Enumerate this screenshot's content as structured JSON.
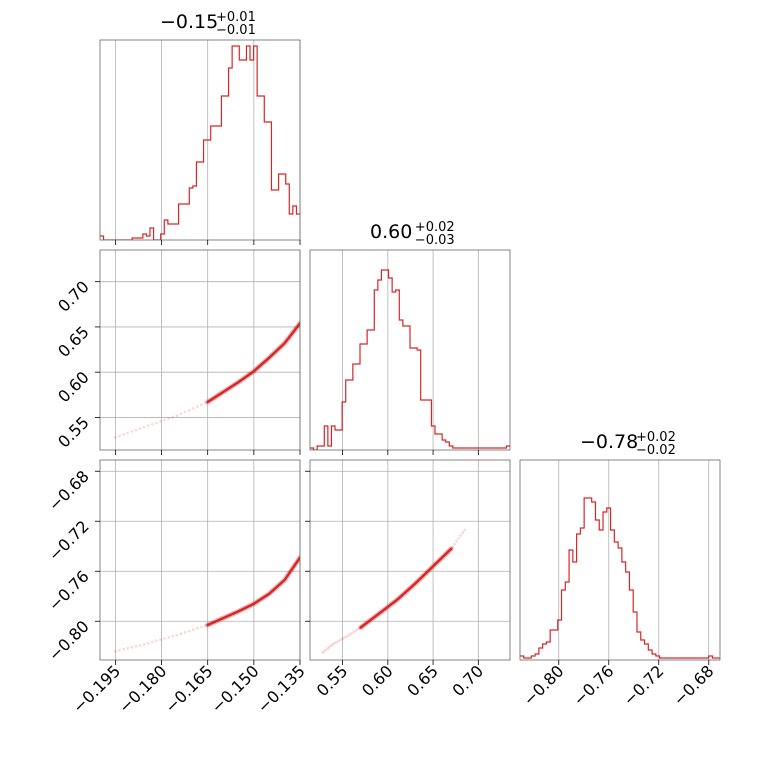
{
  "chart_data": {
    "type": "corner",
    "color": "#d62728",
    "grid": true,
    "parameters": [
      {
        "title": {
          "main": "−0.15",
          "sup": "+0.01",
          "sub": "−0.01"
        },
        "range": [
          -0.2,
          -0.135
        ],
        "ticks": [
          -0.195,
          -0.18,
          -0.165,
          -0.15,
          -0.135
        ],
        "tick_labels": [
          "−0.195",
          "−0.180",
          "−0.165",
          "−0.150",
          "−0.135"
        ]
      },
      {
        "title": {
          "main": "0.60",
          "sup": "+0.02",
          "sub": "−0.03"
        },
        "range": [
          0.514,
          0.735
        ],
        "ticks": [
          0.55,
          0.6,
          0.65,
          0.7
        ],
        "tick_labels": [
          "0.55",
          "0.60",
          "0.65",
          "0.70"
        ]
      },
      {
        "title": {
          "main": "−0.78",
          "sup": "+0.02",
          "sub": "−0.02"
        },
        "range": [
          -0.831,
          -0.671
        ],
        "ticks": [
          -0.8,
          -0.76,
          -0.72,
          -0.68
        ],
        "tick_labels": [
          "−0.80",
          "−0.76",
          "−0.72",
          "−0.68"
        ]
      }
    ],
    "histograms": [
      {
        "param": 0,
        "edges_start": -0.2,
        "edges_end": -0.135,
        "counts": [
          0.02,
          0,
          0,
          0,
          0,
          0,
          0,
          0,
          0,
          0.01,
          0.01,
          0.01,
          0.03,
          0.02,
          0.06,
          0,
          0,
          0.03,
          0.1,
          0.08,
          0.08,
          0.08,
          0.18,
          0.18,
          0.18,
          0.26,
          0.27,
          0.39,
          0.39,
          0.5,
          0.5,
          0.57,
          0.57,
          0.57,
          0.72,
          0.72,
          0.86,
          0.97,
          0.97,
          0.9,
          0.9,
          0.97,
          0.9,
          0.97,
          0.72,
          0.72,
          0.59,
          0.59,
          0.25,
          0.25,
          0.33,
          0.33,
          0.28,
          0.13,
          0.17,
          0.13
        ]
      },
      {
        "param": 1,
        "edges_start": 0.514,
        "edges_end": 0.735,
        "counts": [
          0.01,
          0,
          0.02,
          0.02,
          0.12,
          0.02,
          0.12,
          0.1,
          0.1,
          0.24,
          0.35,
          0.35,
          0.43,
          0.43,
          0.53,
          0.53,
          0.6,
          0.6,
          0.8,
          0.85,
          0.9,
          0.9,
          0.86,
          0.79,
          0.8,
          0.65,
          0.62,
          0.62,
          0.51,
          0.51,
          0.5,
          0.25,
          0.25,
          0.25,
          0.12,
          0.08,
          0.08,
          0.05,
          0.04,
          0.02,
          0.01,
          0.01,
          0.01,
          0.01,
          0.01,
          0.01,
          0.01,
          0.01,
          0.01,
          0.01,
          0.01,
          0.01,
          0.01,
          0.01,
          0.01,
          0.02
        ]
      },
      {
        "param": 2,
        "edges_start": -0.831,
        "edges_end": -0.671,
        "counts": [
          0.02,
          0.01,
          0.01,
          0.02,
          0.03,
          0.06,
          0.08,
          0.09,
          0.15,
          0.15,
          0.2,
          0.35,
          0.39,
          0.55,
          0.49,
          0.63,
          0.66,
          0.81,
          0.81,
          0.79,
          0.7,
          0.65,
          0.74,
          0.76,
          0.65,
          0.59,
          0.56,
          0.49,
          0.44,
          0.35,
          0.24,
          0.14,
          0.1,
          0.08,
          0.05,
          0.03,
          0.02,
          0.01,
          0.01,
          0.01,
          0.01,
          0.01,
          0.01,
          0.01,
          0.01,
          0.01,
          0.01,
          0.01,
          0.01,
          0.01,
          0.02,
          0.01,
          0.01
        ]
      }
    ],
    "curves_2d": [
      {
        "px": 0,
        "py": 1,
        "x": [
          -0.195,
          -0.185,
          -0.175,
          -0.165,
          -0.155,
          -0.15,
          -0.145,
          -0.14,
          -0.135
        ],
        "y": [
          0.528,
          0.54,
          0.552,
          0.567,
          0.589,
          0.601,
          0.616,
          0.632,
          0.654
        ]
      },
      {
        "px": 0,
        "py": 2,
        "x": [
          -0.195,
          -0.185,
          -0.175,
          -0.165,
          -0.155,
          -0.15,
          -0.145,
          -0.14,
          -0.135
        ],
        "y": [
          -0.824,
          -0.818,
          -0.811,
          -0.803,
          -0.792,
          -0.786,
          -0.778,
          -0.767,
          -0.749
        ]
      },
      {
        "px": 1,
        "py": 2,
        "x": [
          0.528,
          0.54,
          0.555,
          0.57,
          0.59,
          0.61,
          0.63,
          0.65,
          0.67,
          0.685
        ],
        "y": [
          -0.825,
          -0.818,
          -0.812,
          -0.805,
          -0.794,
          -0.783,
          -0.77,
          -0.756,
          -0.742,
          -0.727
        ]
      }
    ]
  }
}
